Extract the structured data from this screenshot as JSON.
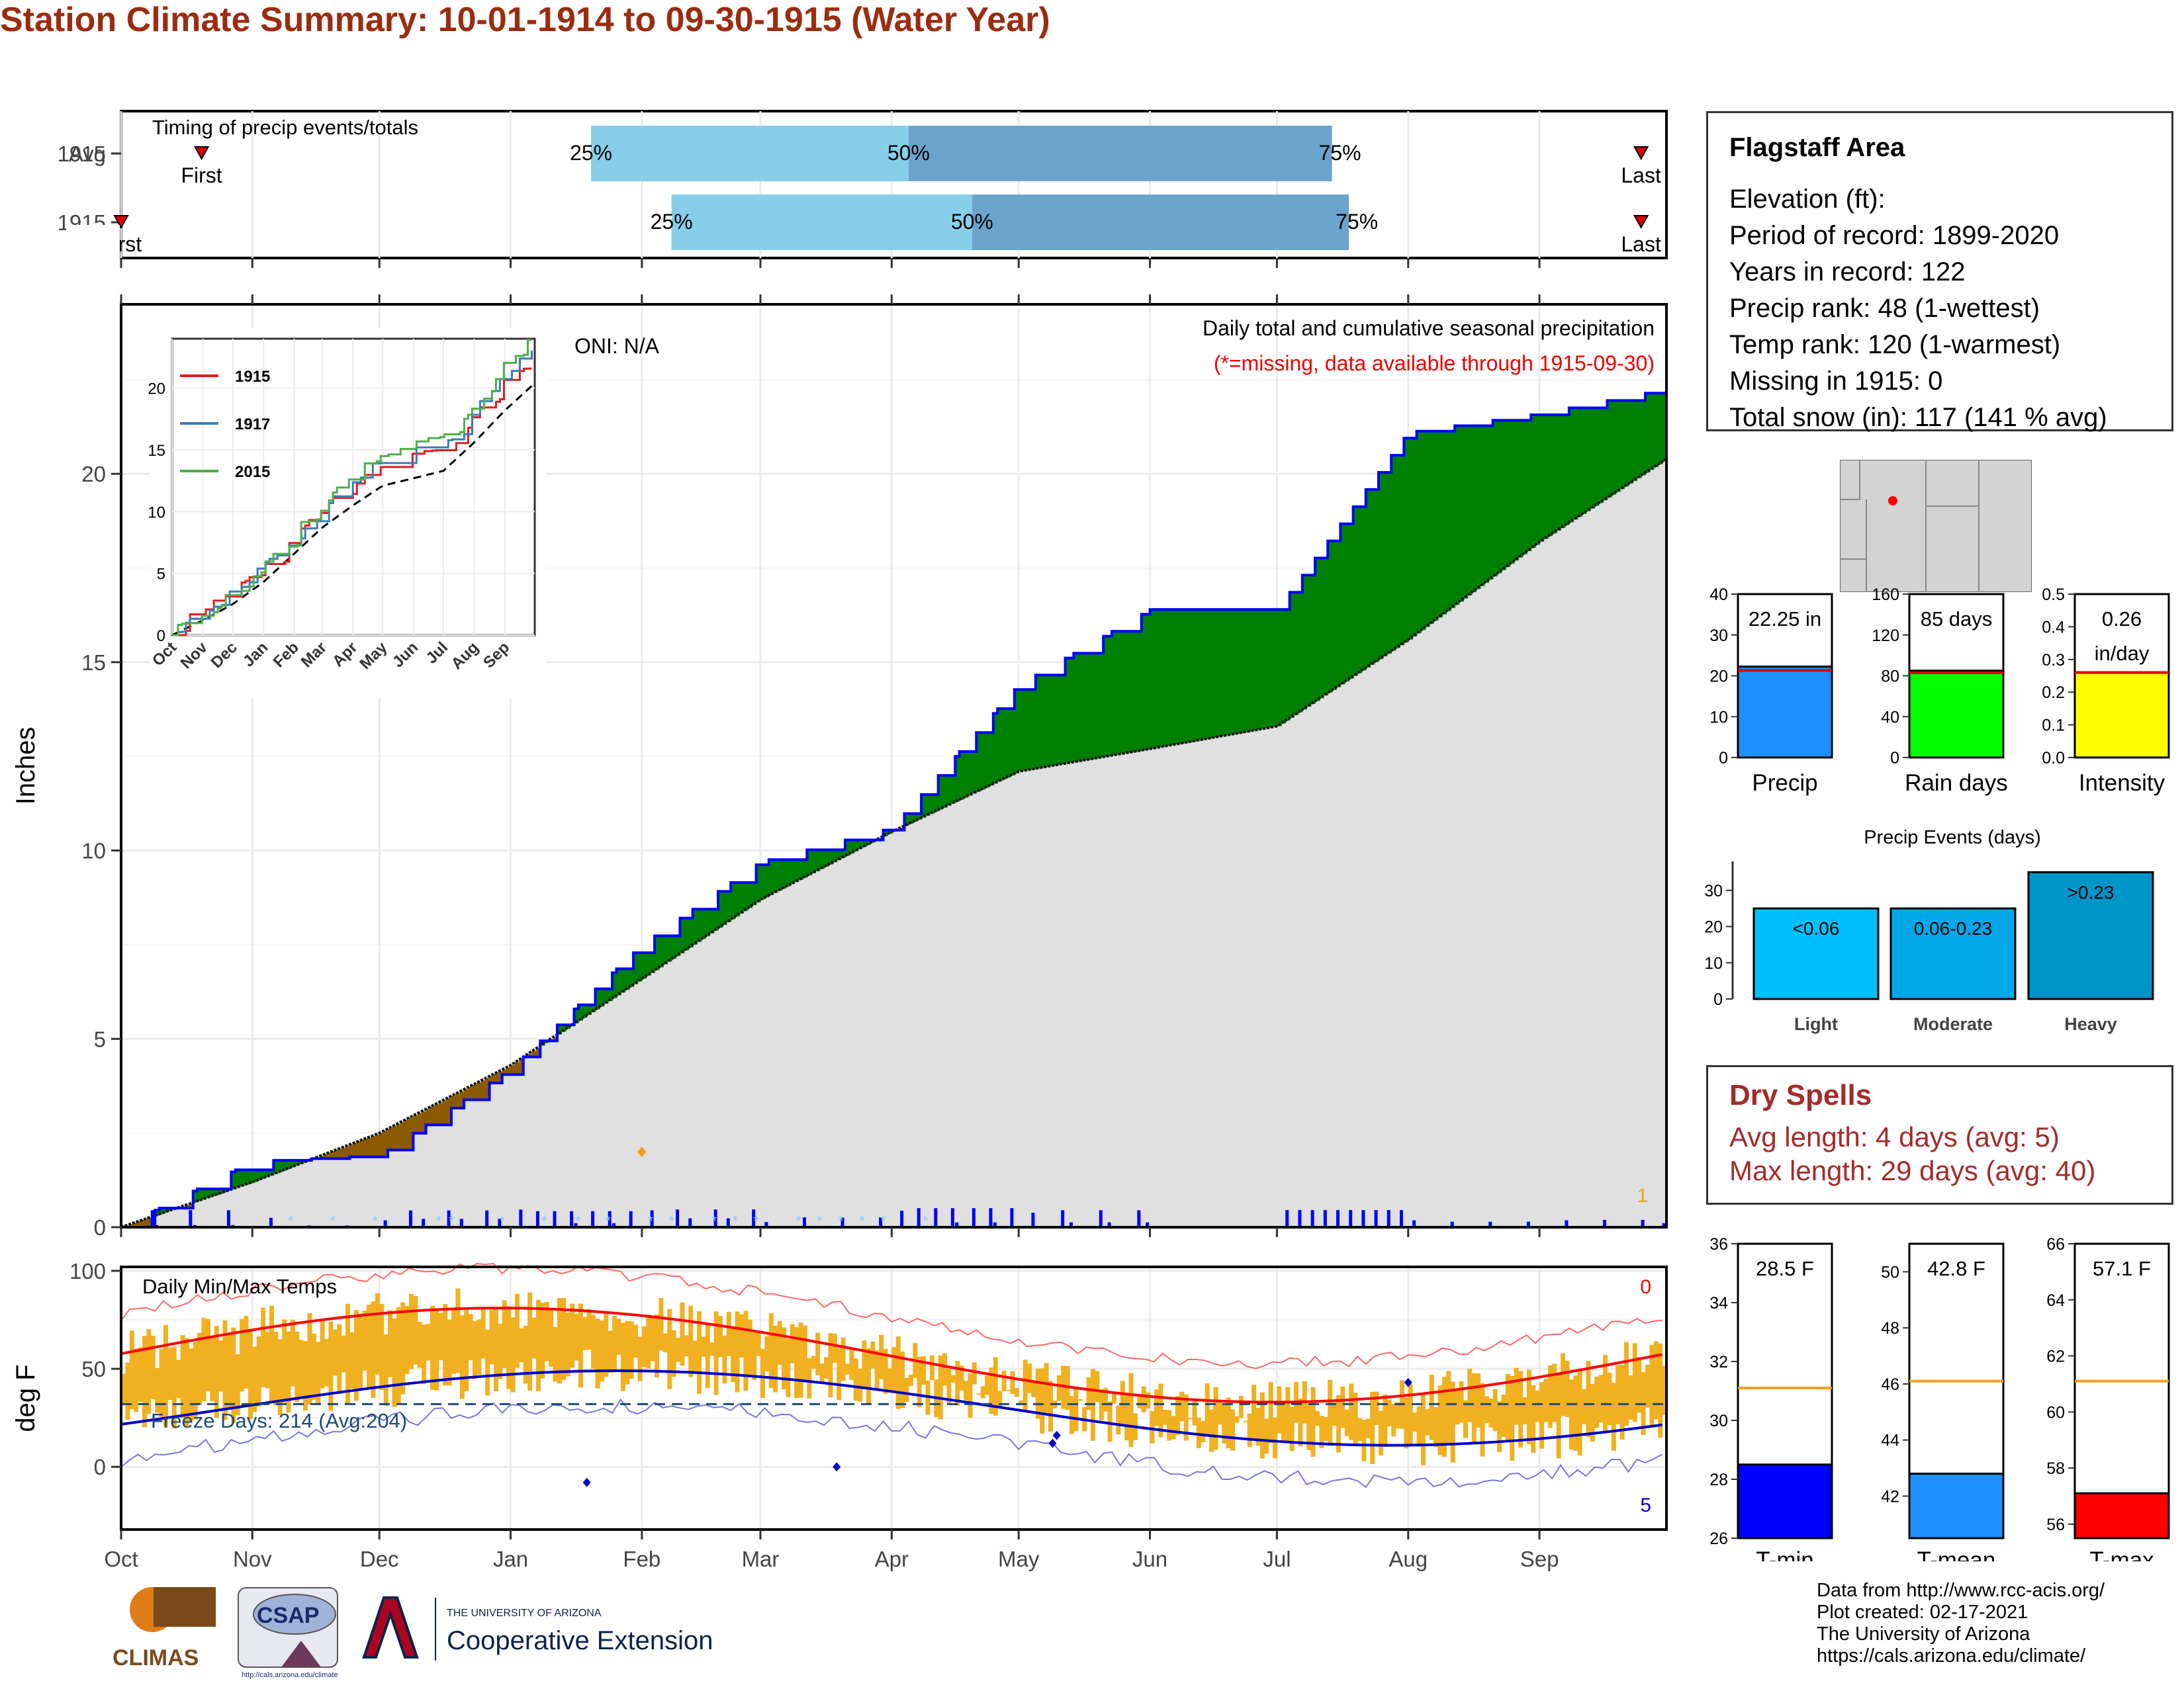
{
  "title": "Station Climate Summary: 10-01-1914 to 09-30-1915 (Water Year)",
  "colors": {
    "title": "#9b2c10",
    "bar_light": "#87ceeb",
    "bar_dark": "#6aa4cc",
    "above": "#008000",
    "below": "#8b5a00",
    "climo_fill": "#e0e0e0",
    "precip_line": "#0000ff",
    "tmax": "#ff0000",
    "tmin": "#0000cc",
    "temp_bar": "#f0b020"
  },
  "timing": {
    "label": "Timing of precip events/totals",
    "rows": [
      {
        "name": "Avg",
        "first": "First",
        "last": "Last",
        "p25": "25%",
        "p50": "50%",
        "p75": "75%",
        "first_date": "1914-10-20",
        "d25": "1915-01-20",
        "d50": "1915-04-05",
        "d75": "1915-07-14",
        "last_date": "1915-09-25"
      },
      {
        "name": "1915",
        "first": "First",
        "last": "Last",
        "p25": "25%",
        "p50": "50%",
        "p75": "75%",
        "first_date": "1914-10-01",
        "d25": "1915-02-08",
        "d50": "1915-04-20",
        "d75": "1915-07-18",
        "last_date": "1915-09-25"
      }
    ]
  },
  "precip_panel": {
    "title": "Daily total and cumulative seasonal precipitation",
    "missing_note": "(*=missing, data available through 1915-09-30)",
    "oni": "ONI: N/A",
    "ylabel": "Inches",
    "yticks": [
      "0",
      "5",
      "10",
      "15",
      "20"
    ],
    "corner_count": "1"
  },
  "inset": {
    "series": [
      {
        "name": "1915",
        "color": "#e41a1c"
      },
      {
        "name": "1917",
        "color": "#377eb8"
      },
      {
        "name": "2015",
        "color": "#4daf4a"
      }
    ],
    "yticks": [
      "0",
      "5",
      "10",
      "15",
      "20"
    ],
    "xticks": [
      "Oct",
      "Nov",
      "Dec",
      "Jan",
      "Feb",
      "Mar",
      "Apr",
      "May",
      "Jun",
      "Jul",
      "Aug",
      "Sep"
    ]
  },
  "temp_panel": {
    "title": "Daily Min/Max Temps",
    "ylabel": "deg F",
    "yticks": [
      "0",
      "50",
      "100"
    ],
    "freeze_label": "Freeze Days: 214 (Avg:204)",
    "count_top": "0",
    "count_bottom": "5"
  },
  "xaxis_months": [
    "Oct",
    "Nov",
    "Dec",
    "Jan",
    "Feb",
    "Mar",
    "Apr",
    "May",
    "Jun",
    "Jul",
    "Aug",
    "Sep"
  ],
  "station": {
    "name": "Flagstaff Area",
    "elevation": "Elevation (ft):",
    "period": "Period of record: 1899-2020",
    "years": "Years in record: 122",
    "precip_rank": "Precip rank: 48 (1-wettest)",
    "temp_rank": "Temp rank: 120 (1-warmest)",
    "missing": "Missing in 1915: 0",
    "snow": "Total snow (in): 117 (141 % avg)"
  },
  "mini_bars": [
    {
      "label": "Precip",
      "value_text": "22.25 in",
      "value": 22.25,
      "avg": 21.3,
      "max": 40,
      "ticks": [
        "0",
        "10",
        "20",
        "30",
        "40"
      ],
      "color": "#1e90ff"
    },
    {
      "label": "Rain days",
      "value_text": "85 days",
      "value": 85,
      "avg": 83,
      "max": 160,
      "ticks": [
        "0",
        "40",
        "80",
        "120",
        "160"
      ],
      "color": "#00ff00"
    },
    {
      "label": "Intensity",
      "value_text": "0.26",
      "value_text2": "in/day",
      "value": 0.26,
      "avg": 0.26,
      "max": 0.5,
      "ticks": [
        "0.0",
        "0.1",
        "0.2",
        "0.3",
        "0.4",
        "0.5"
      ],
      "color": "#ffff00"
    }
  ],
  "events": {
    "title": "Precip Events (days)",
    "ticks": [
      "0",
      "10",
      "20",
      "30"
    ],
    "bars": [
      {
        "label": "Light",
        "range": "<0.06",
        "value": 25,
        "color": "#00bfff"
      },
      {
        "label": "Moderate",
        "range": "0.06-0.23",
        "value": 25,
        "color": "#00a8e8"
      },
      {
        "label": "Heavy",
        "range": ">0.23",
        "value": 35,
        "color": "#0095c8"
      }
    ]
  },
  "dry_spells": {
    "title": "Dry Spells",
    "avg": "Avg length: 4 days (avg: 5)",
    "max": "Max length: 29 days (avg: 40)"
  },
  "temp_bars": [
    {
      "label": "T-min",
      "value_text": "28.5 F",
      "value": 28.5,
      "avg": 31.1,
      "min": 26,
      "max": 36,
      "ticks": [
        "26",
        "28",
        "30",
        "32",
        "34",
        "36"
      ],
      "color": "#0000ff"
    },
    {
      "label": "T-mean",
      "value_text": "42.8 F",
      "value": 42.8,
      "avg": 46.1,
      "min": 40.5,
      "max": 51,
      "ticks": [
        "42",
        "44",
        "46",
        "48",
        "50"
      ],
      "color": "#1e90ff"
    },
    {
      "label": "T-max",
      "value_text": "57.1 F",
      "value": 57.1,
      "avg": 61.1,
      "min": 55.5,
      "max": 66,
      "ticks": [
        "56",
        "58",
        "60",
        "62",
        "64",
        "66"
      ],
      "color": "#ff0000"
    }
  ],
  "credits": [
    "Data from http://www.rcc-acis.org/",
    "Plot created: 02-17-2021",
    "The University of Arizona",
    "https://cals.arizona.edu/climate/"
  ],
  "logos": {
    "climas": "CLIMAS",
    "csap": "CSAP",
    "csap_url": "http://cals.arizona.edu/climate",
    "ua_small": "THE UNIVERSITY OF ARIZONA",
    "ua_ext": "Cooperative Extension"
  },
  "chart_data": {
    "type": "area",
    "title": "Daily total and cumulative seasonal precipitation",
    "ylabel": "Inches",
    "ylim": [
      0,
      24.5
    ],
    "x": [
      "Oct",
      "Nov",
      "Dec",
      "Jan",
      "Feb",
      "Mar",
      "Apr",
      "May",
      "Jun",
      "Jul",
      "Aug",
      "Sep",
      "Sep-30"
    ],
    "series": [
      {
        "name": "1915",
        "values": [
          0.0,
          1.75,
          1.9,
          4.2,
          7.5,
          9.7,
          10.6,
          14.4,
          16.4,
          16.4,
          21.1,
          21.6,
          22.25
        ]
      },
      {
        "values": [
          0.0,
          1.2,
          2.5,
          4.3,
          6.6,
          8.7,
          10.5,
          12.1,
          12.7,
          13.3,
          15.6,
          18.2,
          20.4
        ]
      }
    ]
  }
}
